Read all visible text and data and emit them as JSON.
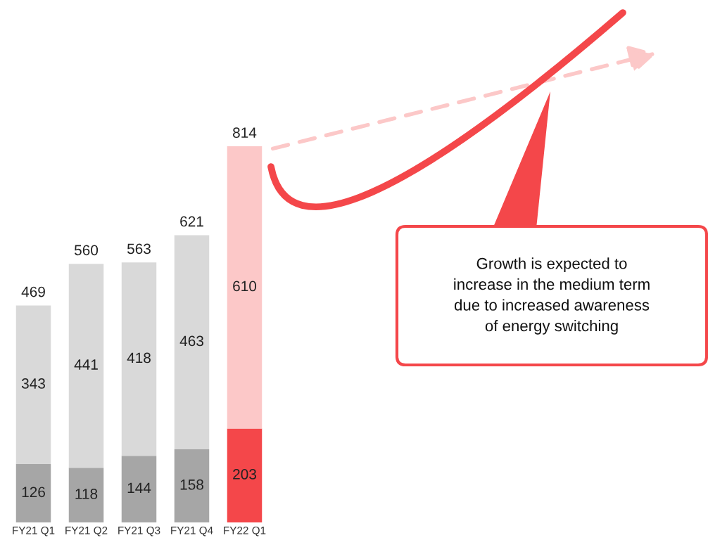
{
  "chart_data": {
    "type": "bar",
    "stacked": true,
    "categories": [
      "FY21 Q1",
      "FY21 Q2",
      "FY21 Q3",
      "FY21 Q4",
      "FY22 Q1"
    ],
    "series": [
      {
        "colors": [
          "#a6a6a6",
          "#a6a6a6",
          "#a6a6a6",
          "#a6a6a6",
          "#f4474a"
        ],
        "values": [
          126,
          118,
          144,
          158,
          203
        ]
      },
      {
        "colors": [
          "#d9d9d9",
          "#d9d9d9",
          "#d9d9d9",
          "#d9d9d9",
          "#fcc8c8"
        ],
        "values": [
          343,
          441,
          418,
          463,
          610
        ]
      }
    ],
    "data_labels": true,
    "totals": [
      "469",
      "560",
      "563",
      "621",
      "814"
    ],
    "tick_labels": "x",
    "grid": false,
    "legend": false,
    "annotations": [
      "Growth is expected to\nincrease in the medium term\ndue to increased awareness\nof energy switching"
    ]
  }
}
